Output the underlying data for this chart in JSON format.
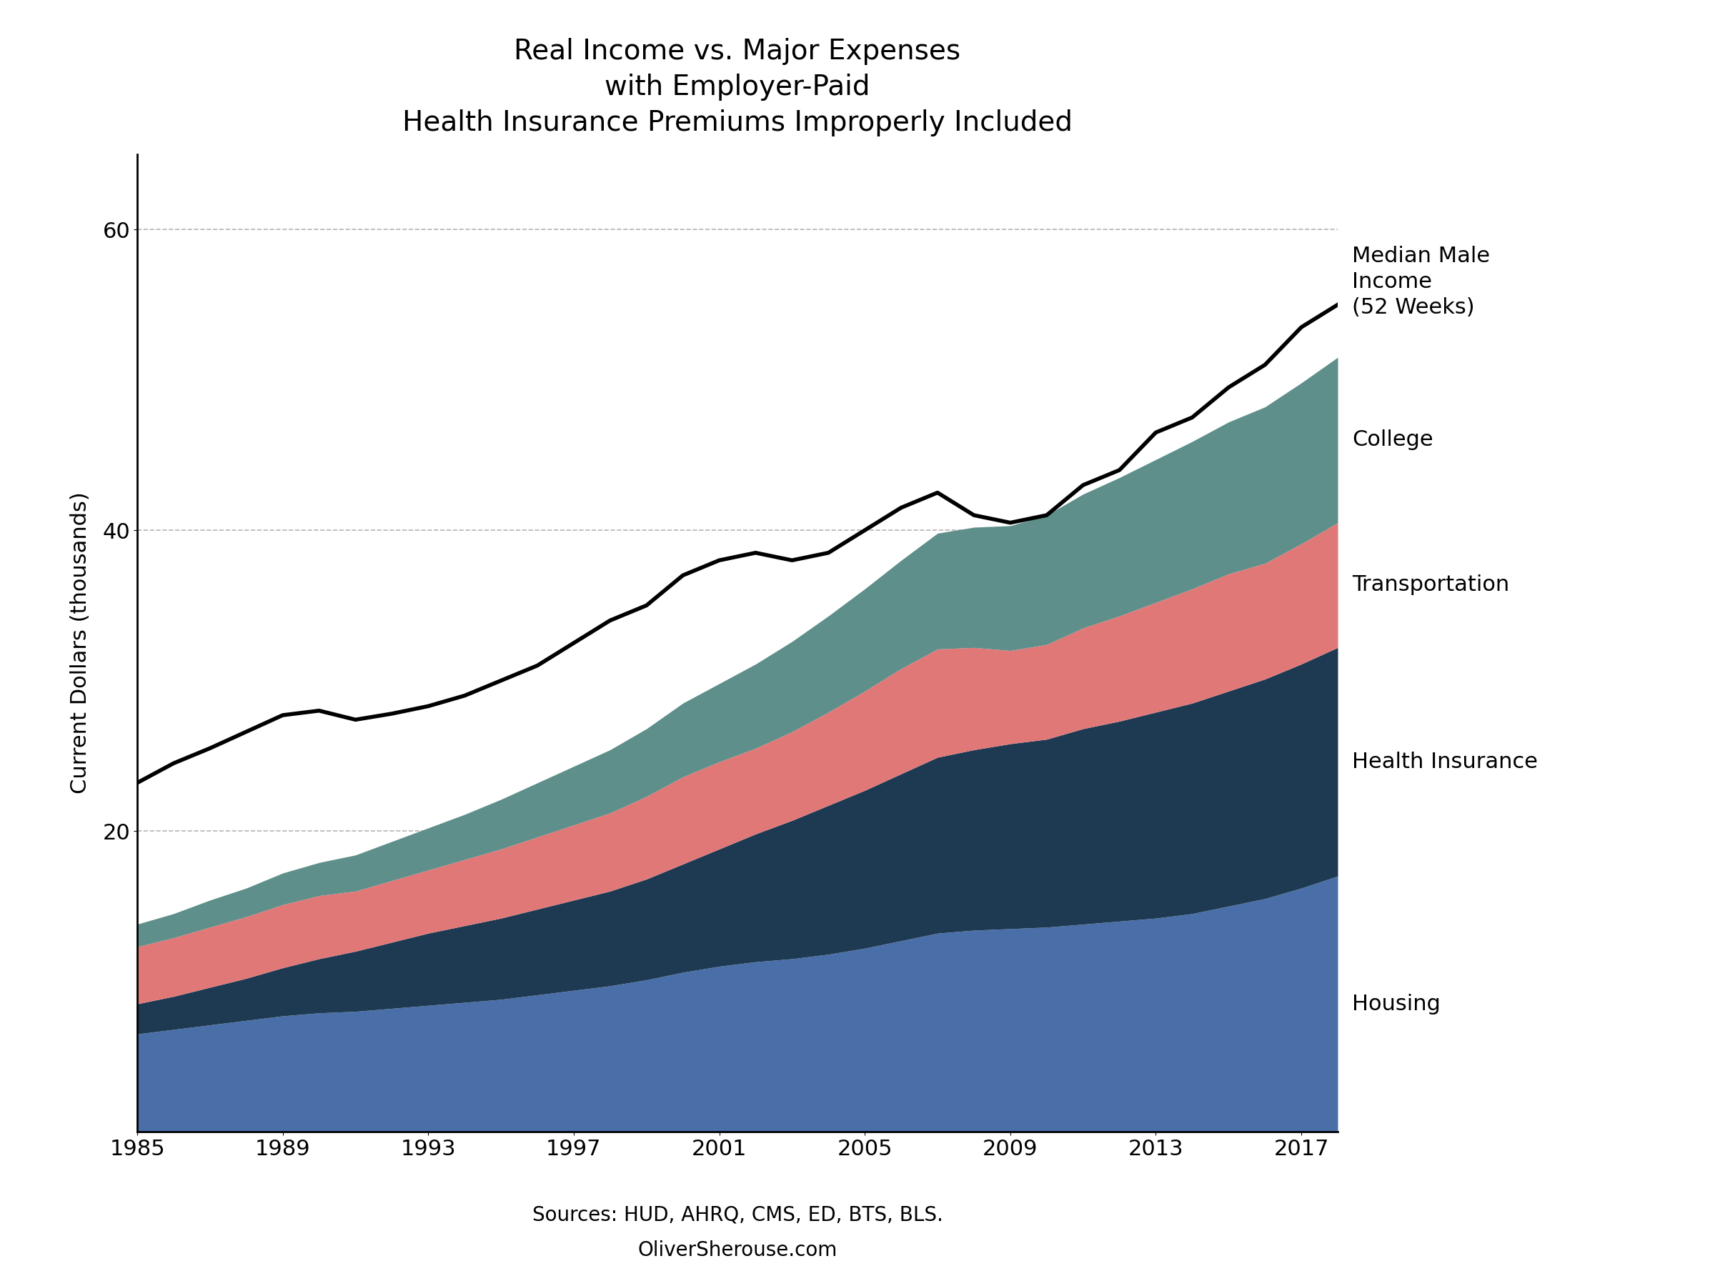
{
  "title": "Real Income vs. Major Expenses\nwith Employer-Paid\nHealth Insurance Premiums Improperly Included",
  "ylabel": "Current Dollars (thousands)",
  "sources": "Sources: HUD, AHRQ, CMS, ED, BTS, BLS.",
  "website": "OliverSherouse.com",
  "years": [
    1985,
    1986,
    1987,
    1988,
    1989,
    1990,
    1991,
    1992,
    1993,
    1994,
    1995,
    1996,
    1997,
    1998,
    1999,
    2000,
    2001,
    2002,
    2003,
    2004,
    2005,
    2006,
    2007,
    2008,
    2009,
    2010,
    2011,
    2012,
    2013,
    2014,
    2015,
    2016,
    2017,
    2018
  ],
  "income": [
    23.2,
    24.5,
    25.5,
    26.6,
    27.7,
    28.0,
    27.4,
    27.8,
    28.3,
    29.0,
    30.0,
    31.0,
    32.5,
    34.0,
    35.0,
    37.0,
    38.0,
    38.5,
    38.0,
    38.5,
    40.0,
    41.5,
    42.5,
    41.0,
    40.5,
    41.0,
    43.0,
    44.0,
    46.5,
    47.5,
    49.5,
    51.0,
    53.5,
    55.0
  ],
  "housing": [
    6.5,
    6.8,
    7.1,
    7.4,
    7.7,
    7.9,
    8.0,
    8.2,
    8.4,
    8.6,
    8.8,
    9.1,
    9.4,
    9.7,
    10.1,
    10.6,
    11.0,
    11.3,
    11.5,
    11.8,
    12.2,
    12.7,
    13.2,
    13.4,
    13.5,
    13.6,
    13.8,
    14.0,
    14.2,
    14.5,
    15.0,
    15.5,
    16.2,
    17.0
  ],
  "health_insurance": [
    2.0,
    2.2,
    2.5,
    2.8,
    3.2,
    3.6,
    4.0,
    4.4,
    4.8,
    5.1,
    5.4,
    5.7,
    6.0,
    6.3,
    6.7,
    7.2,
    7.8,
    8.5,
    9.2,
    9.9,
    10.5,
    11.1,
    11.7,
    12.0,
    12.3,
    12.5,
    13.0,
    13.3,
    13.7,
    14.0,
    14.3,
    14.6,
    14.9,
    15.2
  ],
  "transportation": [
    3.8,
    3.9,
    4.0,
    4.1,
    4.2,
    4.2,
    4.0,
    4.1,
    4.2,
    4.4,
    4.6,
    4.8,
    5.0,
    5.2,
    5.5,
    5.8,
    5.8,
    5.7,
    5.9,
    6.2,
    6.6,
    7.0,
    7.2,
    6.8,
    6.2,
    6.3,
    6.7,
    7.0,
    7.3,
    7.6,
    7.8,
    7.7,
    8.0,
    8.3
  ],
  "college": [
    1.5,
    1.6,
    1.8,
    1.9,
    2.1,
    2.2,
    2.4,
    2.6,
    2.8,
    3.0,
    3.3,
    3.6,
    3.9,
    4.2,
    4.5,
    4.9,
    5.2,
    5.6,
    6.0,
    6.4,
    6.8,
    7.2,
    7.7,
    8.0,
    8.3,
    8.6,
    8.9,
    9.2,
    9.5,
    9.8,
    10.1,
    10.4,
    10.7,
    11.0
  ],
  "housing_color": "#4a6fa8",
  "health_insurance_color": "#1e3a52",
  "transportation_color": "#e07878",
  "college_color": "#5f8f8a",
  "income_color": "#000000",
  "background_color": "#ffffff",
  "ylim": [
    0,
    65
  ],
  "yticks": [
    20,
    40,
    60
  ],
  "xtick_years": [
    1985,
    1989,
    1993,
    1997,
    2001,
    2005,
    2009,
    2013,
    2017
  ],
  "title_fontsize": 28,
  "axis_fontsize": 22,
  "tick_fontsize": 22,
  "annotation_fontsize": 22,
  "source_fontsize": 20
}
